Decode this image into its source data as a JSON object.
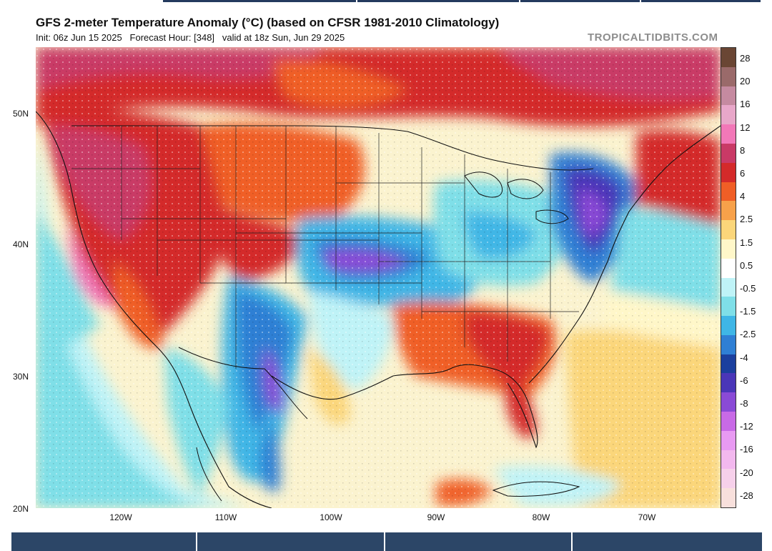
{
  "header": {
    "title": "GFS 2-meter Temperature Anomaly (°C) (based on CFSR 1981-2010 Climatology)",
    "init": "Init: 06z Jun 15 2025",
    "forecast_hour": "Forecast Hour: [348]",
    "valid": "valid at 18z Sun, Jun 29 2025",
    "brand": "TROPICALTIDBITS.COM"
  },
  "axes": {
    "lat_labels": [
      "50N",
      "40N",
      "30N",
      "20N"
    ],
    "lon_labels": [
      "120W",
      "110W",
      "100W",
      "90W",
      "80W",
      "70W"
    ]
  },
  "colorbar": {
    "labels": [
      "28",
      "20",
      "16",
      "12",
      "8",
      "6",
      "4",
      "2.5",
      "1.5",
      "0.5",
      "-0.5",
      "-1.5",
      "-2.5",
      "-4",
      "-6",
      "-8",
      "-12",
      "-16",
      "-20",
      "-28"
    ],
    "colors": [
      "#6a4634",
      "#9a6a6a",
      "#c58aa0",
      "#e8a7c9",
      "#f278b8",
      "#c93a66",
      "#d42a2a",
      "#f05e26",
      "#f7a14a",
      "#fbd67a",
      "#fff7c9",
      "#ffffff",
      "#bff3f7",
      "#7fdfe8",
      "#3fb6e6",
      "#2f7fd4",
      "#1b3f9e",
      "#4a36b8",
      "#8a4ad6",
      "#c86ae6",
      "#e89af2",
      "#f2b8ee",
      "#f6d0ea",
      "#f8e0dc"
    ],
    "color_names": [
      "brown-28",
      "rose-20",
      "pink-16",
      "pink-12",
      "magenta-8",
      "crimson-6",
      "red-4",
      "orange-2.5",
      "lightorange-1.5",
      "yellow-0.5",
      "cream-0",
      "white-0",
      "lightcyan-m0.5",
      "cyan-m1.5",
      "sky-m2.5",
      "blue-m4",
      "navy-m6",
      "indigo-m8",
      "violet-m12",
      "lavender-m16",
      "pinklav-m20",
      "blush-m28",
      "palepink",
      "paleorange"
    ]
  }
}
